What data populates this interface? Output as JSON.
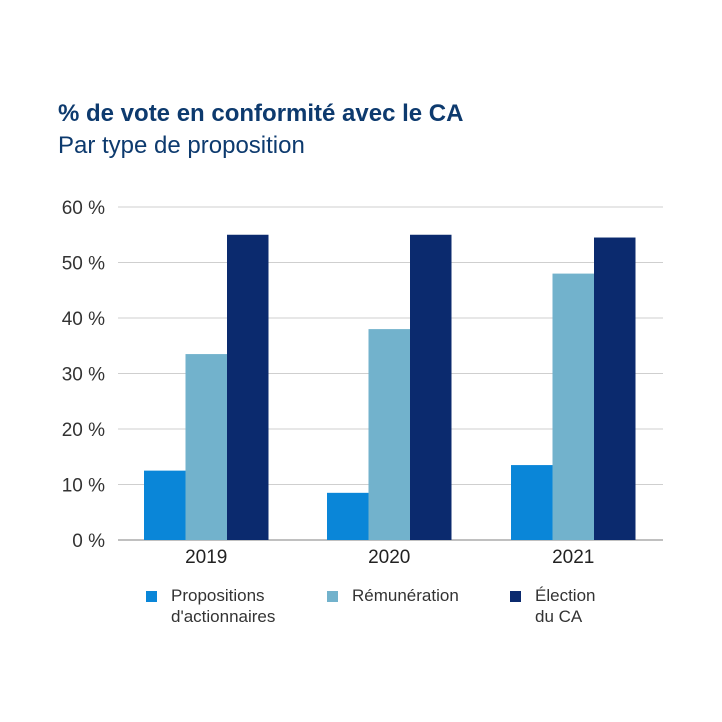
{
  "chart_data": {
    "type": "bar",
    "title": "% de vote en conformité avec le CA",
    "subtitle": "Par type de proposition",
    "categories": [
      "2019",
      "2020",
      "2021"
    ],
    "series": [
      {
        "name": "Propositions\nd'actionnaires",
        "color": "#0a86d8",
        "values": [
          12.5,
          8.5,
          13.5
        ]
      },
      {
        "name": "Rémunération",
        "color": "#72b2cc",
        "values": [
          33.5,
          38,
          48
        ]
      },
      {
        "name": "Élection\ndu CA",
        "color": "#0b2a6e",
        "values": [
          55,
          55,
          54.5
        ]
      }
    ],
    "ylim": [
      0,
      60
    ],
    "yticks": [
      0,
      10,
      20,
      30,
      40,
      50,
      60
    ],
    "ytick_labels": [
      "0 %",
      "10 %",
      "20 %",
      "30 %",
      "40 %",
      "50 %",
      "60 %"
    ],
    "xlabel": "",
    "ylabel": "",
    "grid": true,
    "legend_position": "bottom"
  }
}
